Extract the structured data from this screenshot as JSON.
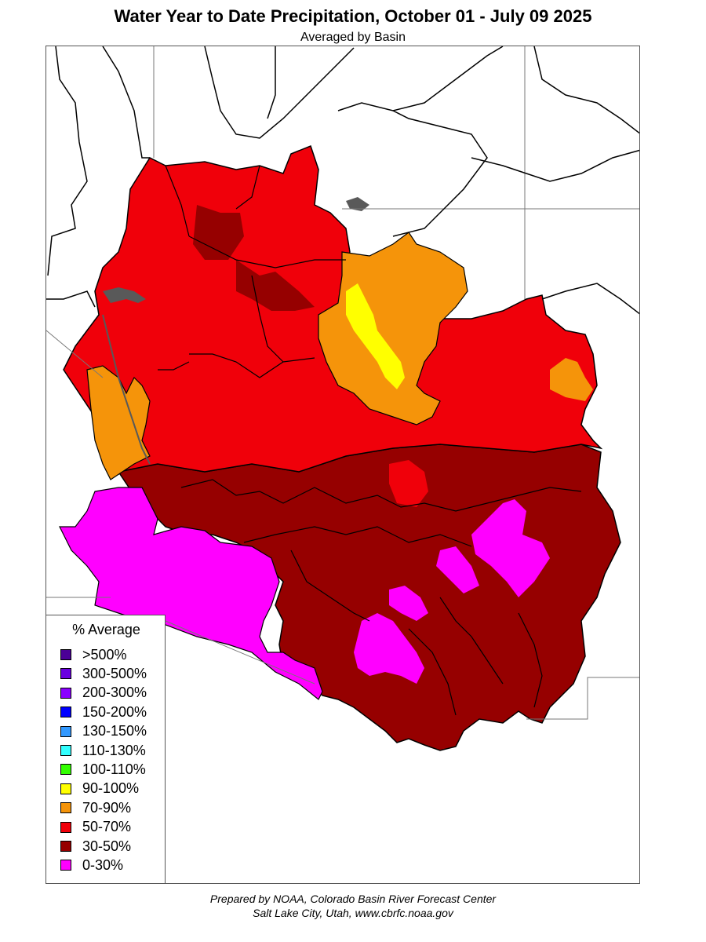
{
  "header": {
    "title": "Water Year to Date Precipitation, October 01  - July 09 2025",
    "subtitle": "Averaged by Basin"
  },
  "legend": {
    "title": "% Average",
    "items": [
      {
        "label": ">500%",
        "color": "#4b0096"
      },
      {
        "label": "300-500%",
        "color": "#6a00e0"
      },
      {
        "label": "200-300%",
        "color": "#8a00ff"
      },
      {
        "label": "150-200%",
        "color": "#0000ff"
      },
      {
        "label": "130-150%",
        "color": "#3399ff"
      },
      {
        "label": "110-130%",
        "color": "#33ffff"
      },
      {
        "label": "100-110%",
        "color": "#33ff00"
      },
      {
        "label": "90-100%",
        "color": "#ffff00"
      },
      {
        "label": "70-90%",
        "color": "#f5940a"
      },
      {
        "label": "50-70%",
        "color": "#f0000a"
      },
      {
        "label": "30-50%",
        "color": "#960000"
      },
      {
        "label": "0-30%",
        "color": "#ff00ff"
      }
    ]
  },
  "footer": {
    "line1": "Prepared by NOAA, Colorado Basin River Forecast Center",
    "line2": "Salt Lake City, Utah, www.cbrfc.noaa.gov"
  },
  "colors": {
    "r3050": "#960000",
    "r5070": "#f0000a",
    "r7090": "#f5940a",
    "r90100": "#ffff00",
    "r030": "#ff00ff",
    "water": "#595959",
    "boundary": "#000000",
    "state_line": "#777777",
    "stream": "#9a9a9a"
  }
}
